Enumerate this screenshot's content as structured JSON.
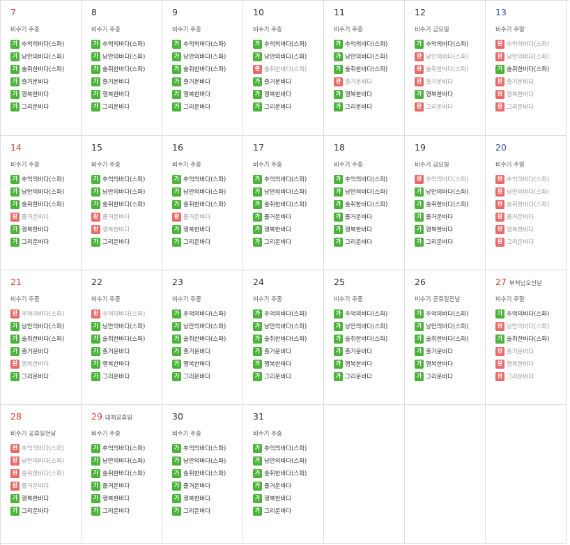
{
  "status_labels": {
    "available": "가",
    "booked": "완"
  },
  "colors": {
    "available": "#4bb33a",
    "booked": "#ea6a6a",
    "sunday": "#e03b3b",
    "saturday": "#2f4fa6"
  },
  "weeks": [
    [
      {
        "day": "7",
        "holiday": "",
        "season": "비수기 주중",
        "rooms": [
          {
            "name": "추억의바다(스파)",
            "status": "available"
          },
          {
            "name": "낭만의바다(스파)",
            "status": "available"
          },
          {
            "name": "술취한바다(스파)",
            "status": "available"
          },
          {
            "name": "즐거운바다",
            "status": "available"
          },
          {
            "name": "행복한바다",
            "status": "available"
          },
          {
            "name": "그리운바다",
            "status": "available"
          }
        ]
      },
      {
        "day": "8",
        "holiday": "",
        "season": "비수기 주중",
        "rooms": [
          {
            "name": "추억의바다(스파)",
            "status": "available"
          },
          {
            "name": "낭만의바다(스파)",
            "status": "available"
          },
          {
            "name": "술취한바다(스파)",
            "status": "available"
          },
          {
            "name": "즐거운바다",
            "status": "available"
          },
          {
            "name": "행복한바다",
            "status": "available"
          },
          {
            "name": "그리운바다",
            "status": "available"
          }
        ]
      },
      {
        "day": "9",
        "holiday": "",
        "season": "비수기 주중",
        "rooms": [
          {
            "name": "추억의바다(스파)",
            "status": "available"
          },
          {
            "name": "낭만의바다(스파)",
            "status": "available"
          },
          {
            "name": "술취한바다(스파)",
            "status": "available"
          },
          {
            "name": "즐거운바다",
            "status": "available"
          },
          {
            "name": "행복한바다",
            "status": "available"
          },
          {
            "name": "그리운바다",
            "status": "available"
          }
        ]
      },
      {
        "day": "10",
        "holiday": "",
        "season": "비수기 주중",
        "rooms": [
          {
            "name": "추억의바다(스파)",
            "status": "available"
          },
          {
            "name": "낭만의바다(스파)",
            "status": "available"
          },
          {
            "name": "술취한바다(스파)",
            "status": "booked"
          },
          {
            "name": "즐거운바다",
            "status": "available"
          },
          {
            "name": "행복한바다",
            "status": "available"
          },
          {
            "name": "그리운바다",
            "status": "available"
          }
        ]
      },
      {
        "day": "11",
        "holiday": "",
        "season": "비수기 주중",
        "rooms": [
          {
            "name": "추억의바다(스파)",
            "status": "available"
          },
          {
            "name": "낭만의바다(스파)",
            "status": "available"
          },
          {
            "name": "술취한바다(스파)",
            "status": "available"
          },
          {
            "name": "즐거운바다",
            "status": "booked"
          },
          {
            "name": "행복한바다",
            "status": "available"
          },
          {
            "name": "그리운바다",
            "status": "available"
          }
        ]
      },
      {
        "day": "12",
        "holiday": "",
        "season": "비수기 금요일",
        "rooms": [
          {
            "name": "추억의바다(스파)",
            "status": "available"
          },
          {
            "name": "낭만의바다(스파)",
            "status": "booked"
          },
          {
            "name": "술취한바다(스파)",
            "status": "booked"
          },
          {
            "name": "즐거운바다",
            "status": "booked"
          },
          {
            "name": "행복한바다",
            "status": "available"
          },
          {
            "name": "그리운바다",
            "status": "booked"
          }
        ]
      },
      {
        "day": "13",
        "holiday": "",
        "season": "비수기 주말",
        "rooms": [
          {
            "name": "추억의바다(스파)",
            "status": "booked"
          },
          {
            "name": "낭만의바다(스파)",
            "status": "booked"
          },
          {
            "name": "술취한바다(스파)",
            "status": "available"
          },
          {
            "name": "즐거운바다",
            "status": "booked"
          },
          {
            "name": "행복한바다",
            "status": "booked"
          },
          {
            "name": "그리운바다",
            "status": "booked"
          }
        ]
      }
    ],
    [
      {
        "day": "14",
        "holiday": "",
        "season": "비수기 주중",
        "rooms": [
          {
            "name": "추억의바다(스파)",
            "status": "available"
          },
          {
            "name": "낭만의바다(스파)",
            "status": "available"
          },
          {
            "name": "술취한바다(스파)",
            "status": "available"
          },
          {
            "name": "즐거운바다",
            "status": "booked"
          },
          {
            "name": "행복한바다",
            "status": "available"
          },
          {
            "name": "그리운바다",
            "status": "available"
          }
        ]
      },
      {
        "day": "15",
        "holiday": "",
        "season": "비수기 주중",
        "rooms": [
          {
            "name": "추억의바다(스파)",
            "status": "available"
          },
          {
            "name": "낭만의바다(스파)",
            "status": "available"
          },
          {
            "name": "술취한바다(스파)",
            "status": "available"
          },
          {
            "name": "즐거운바다",
            "status": "booked"
          },
          {
            "name": "행복한바다",
            "status": "booked"
          },
          {
            "name": "그리운바다",
            "status": "available"
          }
        ]
      },
      {
        "day": "16",
        "holiday": "",
        "season": "비수기 주중",
        "rooms": [
          {
            "name": "추억의바다(스파)",
            "status": "available"
          },
          {
            "name": "낭만의바다(스파)",
            "status": "available"
          },
          {
            "name": "술취한바다(스파)",
            "status": "available"
          },
          {
            "name": "즐거운바다",
            "status": "booked"
          },
          {
            "name": "행복한바다",
            "status": "available"
          },
          {
            "name": "그리운바다",
            "status": "available"
          }
        ]
      },
      {
        "day": "17",
        "holiday": "",
        "season": "비수기 주중",
        "rooms": [
          {
            "name": "추억의바다(스파)",
            "status": "available"
          },
          {
            "name": "낭만의바다(스파)",
            "status": "available"
          },
          {
            "name": "술취한바다(스파)",
            "status": "available"
          },
          {
            "name": "즐거운바다",
            "status": "available"
          },
          {
            "name": "행복한바다",
            "status": "available"
          },
          {
            "name": "그리운바다",
            "status": "available"
          }
        ]
      },
      {
        "day": "18",
        "holiday": "",
        "season": "비수기 주중",
        "rooms": [
          {
            "name": "추억의바다(스파)",
            "status": "available"
          },
          {
            "name": "낭만의바다(스파)",
            "status": "available"
          },
          {
            "name": "술취한바다(스파)",
            "status": "available"
          },
          {
            "name": "즐거운바다",
            "status": "available"
          },
          {
            "name": "행복한바다",
            "status": "available"
          },
          {
            "name": "그리운바다",
            "status": "available"
          }
        ]
      },
      {
        "day": "19",
        "holiday": "",
        "season": "비수기 금요일",
        "rooms": [
          {
            "name": "추억의바다(스파)",
            "status": "booked"
          },
          {
            "name": "낭만의바다(스파)",
            "status": "available"
          },
          {
            "name": "술취한바다(스파)",
            "status": "available"
          },
          {
            "name": "즐거운바다",
            "status": "available"
          },
          {
            "name": "행복한바다",
            "status": "available"
          },
          {
            "name": "그리운바다",
            "status": "available"
          }
        ]
      },
      {
        "day": "20",
        "holiday": "",
        "season": "비수기 주말",
        "rooms": [
          {
            "name": "추억의바다(스파)",
            "status": "booked"
          },
          {
            "name": "낭만의바다(스파)",
            "status": "booked"
          },
          {
            "name": "술취한바다(스파)",
            "status": "booked"
          },
          {
            "name": "즐거운바다",
            "status": "booked"
          },
          {
            "name": "행복한바다",
            "status": "booked"
          },
          {
            "name": "그리운바다",
            "status": "booked"
          }
        ]
      }
    ],
    [
      {
        "day": "21",
        "holiday": "",
        "season": "비수기 주중",
        "rooms": [
          {
            "name": "추억의바다(스파)",
            "status": "booked"
          },
          {
            "name": "낭만의바다(스파)",
            "status": "available"
          },
          {
            "name": "술취한바다(스파)",
            "status": "available"
          },
          {
            "name": "즐거운바다",
            "status": "available"
          },
          {
            "name": "행복한바다",
            "status": "booked"
          },
          {
            "name": "그리운바다",
            "status": "available"
          }
        ]
      },
      {
        "day": "22",
        "holiday": "",
        "season": "비수기 주중",
        "rooms": [
          {
            "name": "추억의바다(스파)",
            "status": "booked"
          },
          {
            "name": "낭만의바다(스파)",
            "status": "available"
          },
          {
            "name": "술취한바다(스파)",
            "status": "available"
          },
          {
            "name": "즐거운바다",
            "status": "available"
          },
          {
            "name": "행복한바다",
            "status": "available"
          },
          {
            "name": "그리운바다",
            "status": "available"
          }
        ]
      },
      {
        "day": "23",
        "holiday": "",
        "season": "비수기 주중",
        "rooms": [
          {
            "name": "추억의바다(스파)",
            "status": "available"
          },
          {
            "name": "낭만의바다(스파)",
            "status": "available"
          },
          {
            "name": "술취한바다(스파)",
            "status": "available"
          },
          {
            "name": "즐거운바다",
            "status": "available"
          },
          {
            "name": "행복한바다",
            "status": "available"
          },
          {
            "name": "그리운바다",
            "status": "available"
          }
        ]
      },
      {
        "day": "24",
        "holiday": "",
        "season": "비수기 주중",
        "rooms": [
          {
            "name": "추억의바다(스파)",
            "status": "available"
          },
          {
            "name": "낭만의바다(스파)",
            "status": "available"
          },
          {
            "name": "술취한바다(스파)",
            "status": "available"
          },
          {
            "name": "즐거운바다",
            "status": "available"
          },
          {
            "name": "행복한바다",
            "status": "available"
          },
          {
            "name": "그리운바다",
            "status": "available"
          }
        ]
      },
      {
        "day": "25",
        "holiday": "",
        "season": "비수기 주중",
        "rooms": [
          {
            "name": "추억의바다(스파)",
            "status": "available"
          },
          {
            "name": "낭만의바다(스파)",
            "status": "available"
          },
          {
            "name": "술취한바다(스파)",
            "status": "available"
          },
          {
            "name": "즐거운바다",
            "status": "available"
          },
          {
            "name": "행복한바다",
            "status": "available"
          },
          {
            "name": "그리운바다",
            "status": "available"
          }
        ]
      },
      {
        "day": "26",
        "holiday": "",
        "season": "비수기 공휴일전날",
        "rooms": [
          {
            "name": "추억의바다(스파)",
            "status": "available"
          },
          {
            "name": "낭만의바다(스파)",
            "status": "available"
          },
          {
            "name": "술취한바다(스파)",
            "status": "available"
          },
          {
            "name": "즐거운바다",
            "status": "available"
          },
          {
            "name": "행복한바다",
            "status": "available"
          },
          {
            "name": "그리운바다",
            "status": "available"
          }
        ]
      },
      {
        "day": "27",
        "holiday": "부처님오신날",
        "season": "비수기 주말",
        "rooms": [
          {
            "name": "추억의바다(스파)",
            "status": "available"
          },
          {
            "name": "낭만의바다(스파)",
            "status": "booked"
          },
          {
            "name": "술취한바다(스파)",
            "status": "available"
          },
          {
            "name": "즐거운바다",
            "status": "booked"
          },
          {
            "name": "행복한바다",
            "status": "booked"
          },
          {
            "name": "그리운바다",
            "status": "booked"
          }
        ]
      }
    ],
    [
      {
        "day": "28",
        "holiday": "",
        "season": "비수기 공휴일전날",
        "rooms": [
          {
            "name": "추억의바다(스파)",
            "status": "booked"
          },
          {
            "name": "낭만의바다(스파)",
            "status": "booked"
          },
          {
            "name": "술취한바다(스파)",
            "status": "booked"
          },
          {
            "name": "즐거운바다",
            "status": "booked"
          },
          {
            "name": "행복한바다",
            "status": "available"
          },
          {
            "name": "그리운바다",
            "status": "available"
          }
        ]
      },
      {
        "day": "29",
        "holiday": "대체공휴일",
        "season": "비수기 주중",
        "rooms": [
          {
            "name": "추억의바다(스파)",
            "status": "available"
          },
          {
            "name": "낭만의바다(스파)",
            "status": "available"
          },
          {
            "name": "술취한바다(스파)",
            "status": "available"
          },
          {
            "name": "즐거운바다",
            "status": "available"
          },
          {
            "name": "행복한바다",
            "status": "available"
          },
          {
            "name": "그리운바다",
            "status": "available"
          }
        ]
      },
      {
        "day": "30",
        "holiday": "",
        "season": "비수기 주중",
        "rooms": [
          {
            "name": "추억의바다(스파)",
            "status": "available"
          },
          {
            "name": "낭만의바다(스파)",
            "status": "available"
          },
          {
            "name": "술취한바다(스파)",
            "status": "available"
          },
          {
            "name": "즐거운바다",
            "status": "available"
          },
          {
            "name": "행복한바다",
            "status": "available"
          },
          {
            "name": "그리운바다",
            "status": "available"
          }
        ]
      },
      {
        "day": "31",
        "holiday": "",
        "season": "비수기 주중",
        "rooms": [
          {
            "name": "추억의바다(스파)",
            "status": "available"
          },
          {
            "name": "낭만의바다(스파)",
            "status": "available"
          },
          {
            "name": "술취한바다(스파)",
            "status": "available"
          },
          {
            "name": "즐거운바다",
            "status": "available"
          },
          {
            "name": "행복한바다",
            "status": "available"
          },
          {
            "name": "그리운바다",
            "status": "available"
          }
        ]
      },
      {
        "day": "",
        "holiday": "",
        "season": "",
        "rooms": []
      },
      {
        "day": "",
        "holiday": "",
        "season": "",
        "rooms": []
      },
      {
        "day": "",
        "holiday": "",
        "season": "",
        "rooms": []
      }
    ]
  ]
}
